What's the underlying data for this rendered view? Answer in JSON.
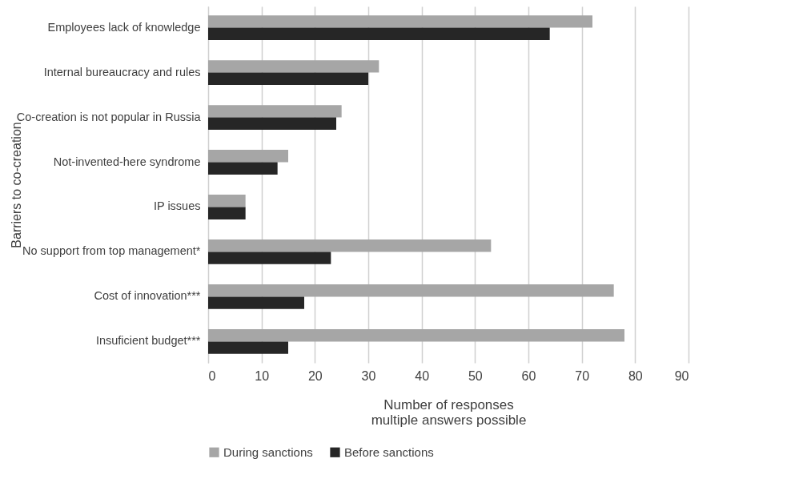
{
  "chart_data": {
    "type": "bar",
    "orientation": "horizontal",
    "ylabel": "Barriers to co-creation",
    "xlabel": "Number of responses\nmultiple answers possible",
    "categories": [
      "Employees lack of knowledge",
      "Internal bureaucracy and rules",
      "Co-creation is not popular in Russia",
      "Not-invented-here syndrome",
      "IP issues",
      "No support from top management*",
      "Cost of innovation***",
      "Insuficient budget***"
    ],
    "series": [
      {
        "name": "During sanctions",
        "color": "#a6a6a6",
        "values": [
          72,
          32,
          25,
          15,
          7,
          53,
          76,
          78
        ]
      },
      {
        "name": "Before sanctions",
        "color": "#262626",
        "values": [
          64,
          30,
          24,
          13,
          7,
          23,
          18,
          15
        ]
      }
    ],
    "xlim": [
      0,
      90
    ],
    "xticks": [
      0,
      10,
      20,
      30,
      40,
      50,
      60,
      70,
      80,
      90
    ],
    "grid": "x",
    "legend": "bottom"
  }
}
